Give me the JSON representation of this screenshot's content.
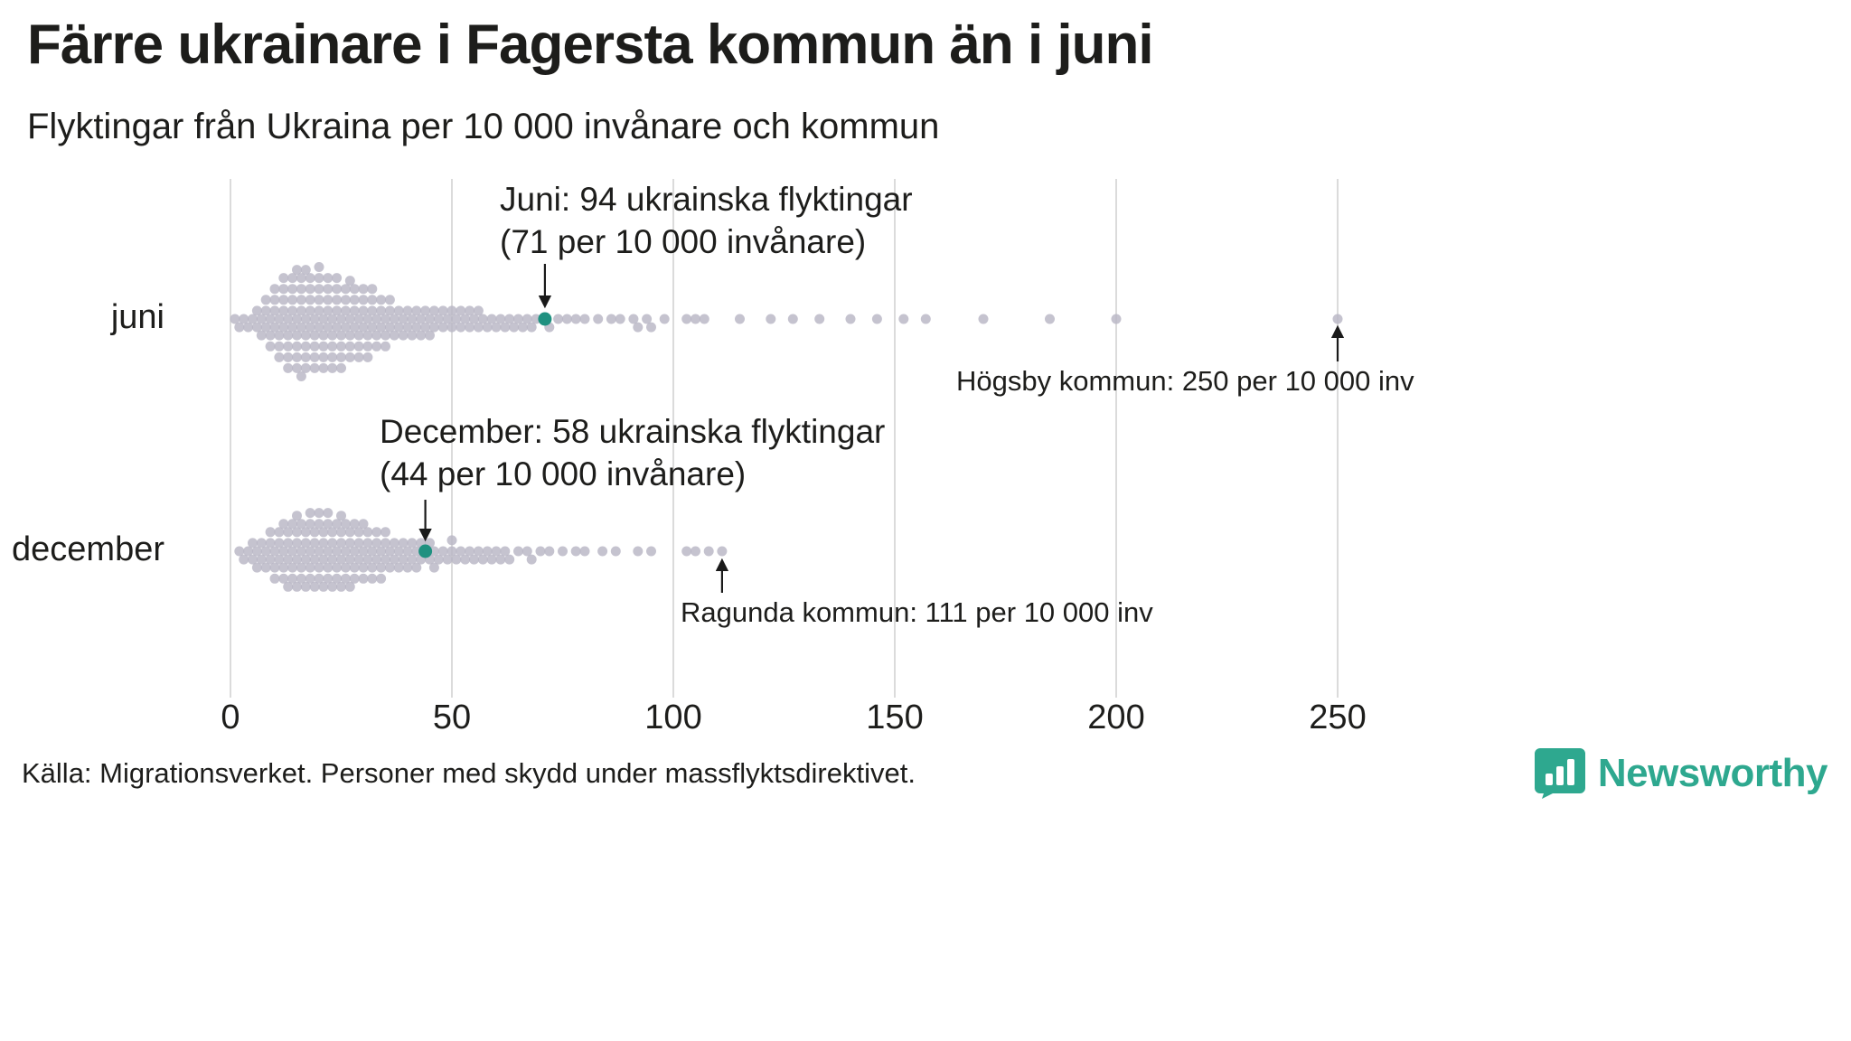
{
  "colors": {
    "dot": "#b8b6c4",
    "highlight": "#1f9180",
    "grid": "#cfcfcf",
    "text": "#1d1d1b",
    "brand": "#2ea88f"
  },
  "source": "Källa: Migrationsverket. Personer med skydd under massflyktsdirektivet.",
  "brand": {
    "name": "Newsworthy"
  },
  "chart_data": {
    "type": "scatter",
    "variant": "beeswarm",
    "title": "Färre ukrainare i Fagersta kommun än i juni",
    "subtitle": "Flyktingar från Ukraina per 10 000 invånare och kommun",
    "xlabel": "",
    "ylabel": "",
    "xlim": [
      0,
      250
    ],
    "x_ticks": [
      0,
      50,
      100,
      150,
      200,
      250
    ],
    "grid": true,
    "rows": [
      {
        "label": "juni",
        "highlight": {
          "value": 71
        },
        "values": [
          1,
          2,
          3,
          4,
          5,
          6,
          6,
          7,
          7,
          8,
          8,
          8,
          9,
          9,
          9,
          10,
          10,
          10,
          10,
          11,
          11,
          11,
          11,
          12,
          12,
          12,
          12,
          12,
          13,
          13,
          13,
          13,
          13,
          14,
          14,
          14,
          14,
          14,
          15,
          15,
          15,
          15,
          15,
          15,
          16,
          16,
          16,
          16,
          16,
          16,
          17,
          17,
          17,
          17,
          17,
          17,
          18,
          18,
          18,
          18,
          18,
          19,
          19,
          19,
          19,
          19,
          20,
          20,
          20,
          20,
          20,
          20,
          21,
          21,
          21,
          21,
          21,
          22,
          22,
          22,
          22,
          22,
          23,
          23,
          23,
          23,
          23,
          24,
          24,
          24,
          24,
          24,
          25,
          25,
          25,
          25,
          25,
          26,
          26,
          26,
          26,
          27,
          27,
          27,
          27,
          27,
          28,
          28,
          28,
          28,
          29,
          29,
          29,
          29,
          30,
          30,
          30,
          30,
          31,
          31,
          31,
          31,
          32,
          32,
          32,
          32,
          33,
          33,
          33,
          34,
          34,
          34,
          35,
          35,
          35,
          36,
          36,
          36,
          37,
          37,
          38,
          38,
          39,
          39,
          40,
          40,
          41,
          41,
          42,
          42,
          43,
          43,
          44,
          44,
          45,
          45,
          46,
          46,
          47,
          48,
          48,
          49,
          50,
          50,
          51,
          52,
          52,
          53,
          54,
          54,
          55,
          56,
          56,
          57,
          58,
          59,
          60,
          61,
          62,
          63,
          64,
          65,
          66,
          67,
          68,
          69,
          71,
          72,
          74,
          76,
          78,
          80,
          83,
          86,
          88,
          91,
          92,
          94,
          95,
          98,
          103,
          105,
          107,
          115,
          122,
          127,
          133,
          140,
          146,
          152,
          157,
          170,
          185,
          200,
          250
        ]
      },
      {
        "label": "december",
        "highlight": {
          "value": 44
        },
        "values": [
          2,
          3,
          4,
          5,
          5,
          6,
          6,
          7,
          7,
          8,
          8,
          9,
          9,
          9,
          10,
          10,
          10,
          11,
          11,
          11,
          12,
          12,
          12,
          12,
          13,
          13,
          13,
          13,
          14,
          14,
          14,
          14,
          15,
          15,
          15,
          15,
          15,
          16,
          16,
          16,
          16,
          17,
          17,
          17,
          17,
          18,
          18,
          18,
          18,
          18,
          19,
          19,
          19,
          19,
          20,
          20,
          20,
          20,
          20,
          21,
          21,
          21,
          21,
          22,
          22,
          22,
          22,
          22,
          23,
          23,
          23,
          23,
          24,
          24,
          24,
          24,
          25,
          25,
          25,
          25,
          25,
          26,
          26,
          26,
          26,
          27,
          27,
          27,
          27,
          28,
          28,
          28,
          28,
          29,
          29,
          29,
          30,
          30,
          30,
          30,
          31,
          31,
          31,
          32,
          32,
          32,
          33,
          33,
          33,
          34,
          34,
          34,
          35,
          35,
          35,
          36,
          36,
          37,
          37,
          38,
          38,
          39,
          39,
          40,
          40,
          41,
          41,
          42,
          42,
          43,
          43,
          44,
          45,
          45,
          46,
          46,
          47,
          48,
          49,
          50,
          50,
          51,
          52,
          53,
          54,
          55,
          56,
          57,
          58,
          59,
          60,
          61,
          62,
          63,
          65,
          67,
          68,
          70,
          72,
          75,
          78,
          80,
          84,
          87,
          92,
          95,
          103,
          105,
          108,
          111
        ]
      }
    ],
    "annotations": [
      {
        "row": "juni",
        "target_value": 71,
        "lines": [
          "Juni: 94 ukrainska flyktingar",
          "(71 per 10 000 invånare)"
        ]
      },
      {
        "row": "juni",
        "target_value": 250,
        "lines": [
          "Högsby kommun: 250 per 10 000 inv"
        ]
      },
      {
        "row": "december",
        "target_value": 44,
        "lines": [
          "December: 58 ukrainska flyktingar",
          "(44 per 10 000 invånare)"
        ]
      },
      {
        "row": "december",
        "target_value": 111,
        "lines": [
          "Ragunda kommun: 111 per 10 000 inv"
        ]
      }
    ]
  }
}
